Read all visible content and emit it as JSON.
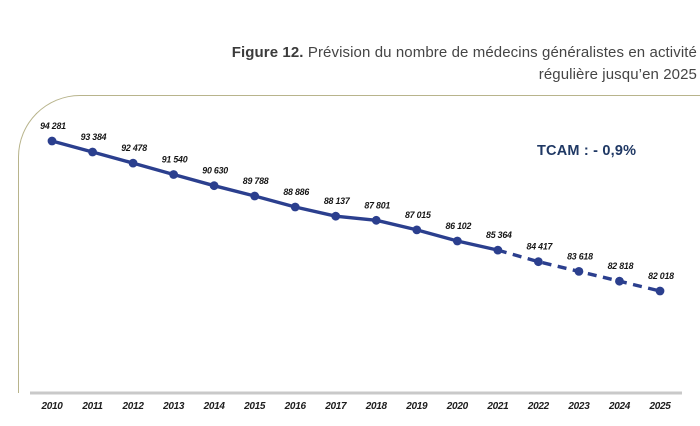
{
  "title": {
    "figure_label": "Figure 12.",
    "line1": " Prévision du nombre de médecins généralistes en activité",
    "line2": "régulière jusqu’en 2025"
  },
  "annotation": {
    "tcam": "TCAM : - 0,9%"
  },
  "colors": {
    "line": "#2b3f8e",
    "axis": "#c9c9c9",
    "frame_border": "#b8b48c",
    "title_text": "#454545",
    "tcam_text": "#1f3864",
    "value_label_text": "#151515"
  },
  "chart_data": {
    "type": "line",
    "x": [
      2010,
      2011,
      2012,
      2013,
      2014,
      2015,
      2016,
      2017,
      2018,
      2019,
      2020,
      2021,
      2022,
      2023,
      2024,
      2025
    ],
    "values": [
      94281,
      93384,
      92478,
      91540,
      90630,
      89788,
      88886,
      88137,
      87801,
      87015,
      86102,
      85364,
      84417,
      83618,
      82818,
      82018
    ],
    "value_labels": [
      "94 281",
      "93 384",
      "92 478",
      "91 540",
      "90 630",
      "89 788",
      "88 886",
      "88 137",
      "87 801",
      "87 015",
      "86 102",
      "85 364",
      "84 417",
      "83 618",
      "82 818",
      "82 018"
    ],
    "title": "Figure 12. Prévision du nombre de médecins généralistes en activité régulière jusqu’en 2025",
    "annotation": "TCAM : - 0,9%",
    "dashed_from_index": 11,
    "dashed_from_year": 2021,
    "grid": false,
    "legend": "none",
    "xlabel": "",
    "ylabel": ""
  }
}
